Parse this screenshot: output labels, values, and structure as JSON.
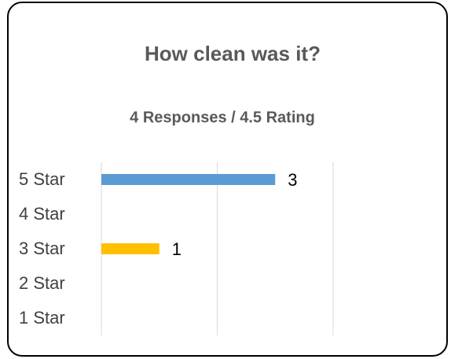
{
  "chart_data": {
    "type": "hbar",
    "title": "How clean was it?",
    "subtitle": "4 Responses / 4.5 Rating",
    "categories": [
      "5 Star",
      "4 Star",
      "3 Star",
      "2 Star",
      "1 Star"
    ],
    "values": [
      3,
      0,
      1,
      0,
      0
    ],
    "colors": [
      "#5b9bd5",
      "#5b9bd5",
      "#ffc000",
      "#5b9bd5",
      "#5b9bd5"
    ],
    "xlim": [
      0,
      4
    ],
    "xticks": [
      0,
      2,
      4
    ],
    "grid": true
  }
}
